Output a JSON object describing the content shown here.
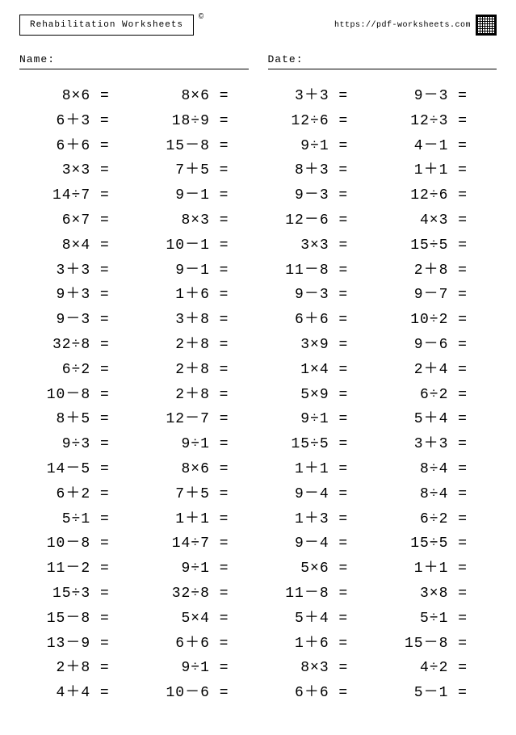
{
  "header": {
    "title": "Rehabilitation Worksheets",
    "copyright": "©",
    "url": "https://pdf-worksheets.com"
  },
  "fields": {
    "name_label": "Name:",
    "date_label": "Date:"
  },
  "op": {
    "mul": "×",
    "add": "＋",
    "sub": "－",
    "div": "÷",
    "eq": " ="
  },
  "columns": [
    [
      {
        "a": 8,
        "op": "mul",
        "b": 6
      },
      {
        "a": 6,
        "op": "add",
        "b": 3
      },
      {
        "a": 6,
        "op": "add",
        "b": 6
      },
      {
        "a": 3,
        "op": "mul",
        "b": 3
      },
      {
        "a": 14,
        "op": "div",
        "b": 7
      },
      {
        "a": 6,
        "op": "mul",
        "b": 7
      },
      {
        "a": 8,
        "op": "mul",
        "b": 4
      },
      {
        "a": 3,
        "op": "add",
        "b": 3
      },
      {
        "a": 9,
        "op": "add",
        "b": 3
      },
      {
        "a": 9,
        "op": "sub",
        "b": 3
      },
      {
        "a": 32,
        "op": "div",
        "b": 8
      },
      {
        "a": 6,
        "op": "div",
        "b": 2
      },
      {
        "a": 10,
        "op": "sub",
        "b": 8
      },
      {
        "a": 8,
        "op": "add",
        "b": 5
      },
      {
        "a": 9,
        "op": "div",
        "b": 3
      },
      {
        "a": 14,
        "op": "sub",
        "b": 5
      },
      {
        "a": 6,
        "op": "add",
        "b": 2
      },
      {
        "a": 5,
        "op": "div",
        "b": 1
      },
      {
        "a": 10,
        "op": "sub",
        "b": 8
      },
      {
        "a": 11,
        "op": "sub",
        "b": 2
      },
      {
        "a": 15,
        "op": "div",
        "b": 3
      },
      {
        "a": 15,
        "op": "sub",
        "b": 8
      },
      {
        "a": 13,
        "op": "sub",
        "b": 9
      },
      {
        "a": 2,
        "op": "add",
        "b": 8
      },
      {
        "a": 4,
        "op": "add",
        "b": 4
      }
    ],
    [
      {
        "a": 8,
        "op": "mul",
        "b": 6
      },
      {
        "a": 18,
        "op": "div",
        "b": 9
      },
      {
        "a": 15,
        "op": "sub",
        "b": 8
      },
      {
        "a": 7,
        "op": "add",
        "b": 5
      },
      {
        "a": 9,
        "op": "sub",
        "b": 1
      },
      {
        "a": 8,
        "op": "mul",
        "b": 3
      },
      {
        "a": 10,
        "op": "sub",
        "b": 1
      },
      {
        "a": 9,
        "op": "sub",
        "b": 1
      },
      {
        "a": 1,
        "op": "add",
        "b": 6
      },
      {
        "a": 3,
        "op": "add",
        "b": 8
      },
      {
        "a": 2,
        "op": "add",
        "b": 8
      },
      {
        "a": 2,
        "op": "add",
        "b": 8
      },
      {
        "a": 2,
        "op": "add",
        "b": 8
      },
      {
        "a": 12,
        "op": "sub",
        "b": 7
      },
      {
        "a": 9,
        "op": "div",
        "b": 1
      },
      {
        "a": 8,
        "op": "mul",
        "b": 6
      },
      {
        "a": 7,
        "op": "add",
        "b": 5
      },
      {
        "a": 1,
        "op": "add",
        "b": 1
      },
      {
        "a": 14,
        "op": "div",
        "b": 7
      },
      {
        "a": 9,
        "op": "div",
        "b": 1
      },
      {
        "a": 32,
        "op": "div",
        "b": 8
      },
      {
        "a": 5,
        "op": "mul",
        "b": 4
      },
      {
        "a": 6,
        "op": "add",
        "b": 6
      },
      {
        "a": 9,
        "op": "div",
        "b": 1
      },
      {
        "a": 10,
        "op": "sub",
        "b": 6
      }
    ],
    [
      {
        "a": 3,
        "op": "add",
        "b": 3
      },
      {
        "a": 12,
        "op": "div",
        "b": 6
      },
      {
        "a": 9,
        "op": "div",
        "b": 1
      },
      {
        "a": 8,
        "op": "add",
        "b": 3
      },
      {
        "a": 9,
        "op": "sub",
        "b": 3
      },
      {
        "a": 12,
        "op": "sub",
        "b": 6
      },
      {
        "a": 3,
        "op": "mul",
        "b": 3
      },
      {
        "a": 11,
        "op": "sub",
        "b": 8
      },
      {
        "a": 9,
        "op": "sub",
        "b": 3
      },
      {
        "a": 6,
        "op": "add",
        "b": 6
      },
      {
        "a": 3,
        "op": "mul",
        "b": 9
      },
      {
        "a": 1,
        "op": "mul",
        "b": 4
      },
      {
        "a": 5,
        "op": "mul",
        "b": 9
      },
      {
        "a": 9,
        "op": "div",
        "b": 1
      },
      {
        "a": 15,
        "op": "div",
        "b": 5
      },
      {
        "a": 1,
        "op": "add",
        "b": 1
      },
      {
        "a": 9,
        "op": "sub",
        "b": 4
      },
      {
        "a": 1,
        "op": "add",
        "b": 3
      },
      {
        "a": 9,
        "op": "sub",
        "b": 4
      },
      {
        "a": 5,
        "op": "mul",
        "b": 6
      },
      {
        "a": 11,
        "op": "sub",
        "b": 8
      },
      {
        "a": 5,
        "op": "add",
        "b": 4
      },
      {
        "a": 1,
        "op": "add",
        "b": 6
      },
      {
        "a": 8,
        "op": "mul",
        "b": 3
      },
      {
        "a": 6,
        "op": "add",
        "b": 6
      }
    ],
    [
      {
        "a": 9,
        "op": "sub",
        "b": 3
      },
      {
        "a": 12,
        "op": "div",
        "b": 3
      },
      {
        "a": 4,
        "op": "sub",
        "b": 1
      },
      {
        "a": 1,
        "op": "add",
        "b": 1
      },
      {
        "a": 12,
        "op": "div",
        "b": 6
      },
      {
        "a": 4,
        "op": "mul",
        "b": 3
      },
      {
        "a": 15,
        "op": "div",
        "b": 5
      },
      {
        "a": 2,
        "op": "add",
        "b": 8
      },
      {
        "a": 9,
        "op": "sub",
        "b": 7
      },
      {
        "a": 10,
        "op": "div",
        "b": 2
      },
      {
        "a": 9,
        "op": "sub",
        "b": 6
      },
      {
        "a": 2,
        "op": "add",
        "b": 4
      },
      {
        "a": 6,
        "op": "div",
        "b": 2
      },
      {
        "a": 5,
        "op": "add",
        "b": 4
      },
      {
        "a": 3,
        "op": "add",
        "b": 3
      },
      {
        "a": 8,
        "op": "div",
        "b": 4
      },
      {
        "a": 8,
        "op": "div",
        "b": 4
      },
      {
        "a": 6,
        "op": "div",
        "b": 2
      },
      {
        "a": 15,
        "op": "div",
        "b": 5
      },
      {
        "a": 1,
        "op": "add",
        "b": 1
      },
      {
        "a": 3,
        "op": "mul",
        "b": 8
      },
      {
        "a": 5,
        "op": "div",
        "b": 1
      },
      {
        "a": 15,
        "op": "sub",
        "b": 8
      },
      {
        "a": 4,
        "op": "div",
        "b": 2
      },
      {
        "a": 5,
        "op": "sub",
        "b": 1
      }
    ]
  ]
}
